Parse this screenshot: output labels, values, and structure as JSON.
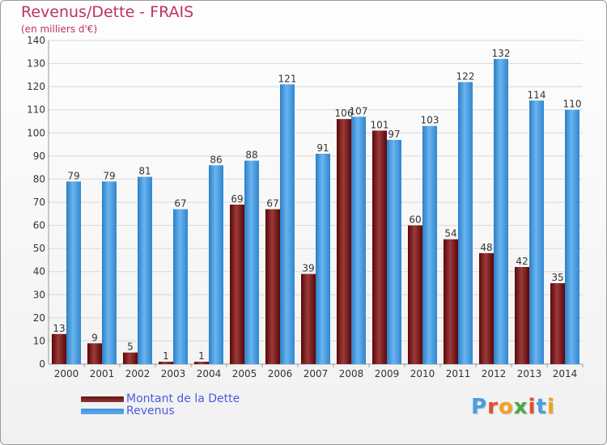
{
  "header": {
    "title": "Revenus/Dette - FRAIS",
    "subtitle": "(en milliers d'€)"
  },
  "legend": {
    "items": [
      {
        "label": "Montant de la Dette",
        "color": "#6b1010"
      },
      {
        "label": "Revenus",
        "color": "#3c96e0"
      }
    ]
  },
  "logo": {
    "text": "Proxiti",
    "letters": [
      {
        "ch": "P",
        "color": "#4a9ee0"
      },
      {
        "ch": "r",
        "color": "#e64b2a"
      },
      {
        "ch": "o",
        "color": "#f2a21c"
      },
      {
        "ch": "x",
        "color": "#4aa84a"
      },
      {
        "ch": "i",
        "color": "#e64b2a"
      },
      {
        "ch": "t",
        "color": "#4a9ee0"
      },
      {
        "ch": "i",
        "color": "#f2a21c"
      }
    ]
  },
  "chart_data": {
    "type": "bar",
    "title": "Revenus/Dette - FRAIS",
    "subtitle": "(en milliers d'€)",
    "categories": [
      "2000",
      "2001",
      "2002",
      "2003",
      "2004",
      "2005",
      "2006",
      "2007",
      "2008",
      "2009",
      "2010",
      "2011",
      "2012",
      "2013",
      "2014"
    ],
    "series": [
      {
        "name": "Montant de la Dette",
        "color": "#6b1010",
        "values": [
          13,
          9,
          5,
          1,
          1,
          69,
          67,
          39,
          106,
          101,
          60,
          54,
          48,
          42,
          35
        ]
      },
      {
        "name": "Revenus",
        "color": "#3c96e0",
        "values": [
          79,
          79,
          81,
          67,
          86,
          88,
          121,
          91,
          107,
          97,
          103,
          122,
          132,
          114,
          110
        ]
      }
    ],
    "ylim": [
      0,
      140
    ],
    "yticks": [
      0,
      10,
      20,
      30,
      40,
      50,
      60,
      70,
      80,
      90,
      100,
      110,
      120,
      130,
      140
    ],
    "grid": true,
    "legend_position": "bottom-left"
  }
}
